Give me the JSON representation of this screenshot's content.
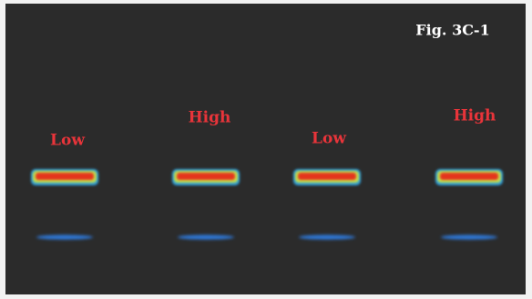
{
  "figure_label": "Fig. 3C-1",
  "lanes": [
    {
      "label": "Low"
    },
    {
      "label": "High"
    },
    {
      "label": "Low"
    },
    {
      "label": "High"
    }
  ]
}
